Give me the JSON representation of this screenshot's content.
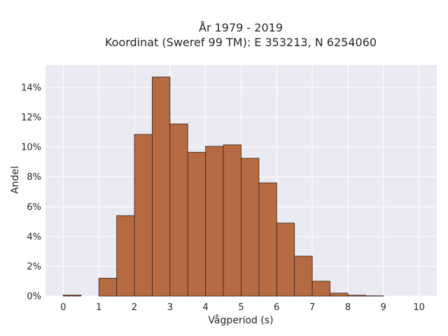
{
  "chart_data": {
    "type": "bar",
    "title_line1": "År 1979 - 2019",
    "title_line2": "Koordinat (Sweref 99 TM): E 353213, N 6254060",
    "xlabel": "Vågperiod (s)",
    "ylabel": "Andel",
    "bin_width": 0.5,
    "bins": [
      {
        "x0": 0.0,
        "value": 0.0007
      },
      {
        "x0": 0.5,
        "value": 0.0
      },
      {
        "x0": 1.0,
        "value": 0.012
      },
      {
        "x0": 1.5,
        "value": 0.054
      },
      {
        "x0": 2.0,
        "value": 0.1085
      },
      {
        "x0": 2.5,
        "value": 0.147
      },
      {
        "x0": 3.0,
        "value": 0.1155
      },
      {
        "x0": 3.5,
        "value": 0.0965
      },
      {
        "x0": 4.0,
        "value": 0.1005
      },
      {
        "x0": 4.5,
        "value": 0.1015
      },
      {
        "x0": 5.0,
        "value": 0.0925
      },
      {
        "x0": 5.5,
        "value": 0.076
      },
      {
        "x0": 6.0,
        "value": 0.049
      },
      {
        "x0": 6.5,
        "value": 0.0268
      },
      {
        "x0": 7.0,
        "value": 0.01
      },
      {
        "x0": 7.5,
        "value": 0.002
      },
      {
        "x0": 8.0,
        "value": 0.0006
      },
      {
        "x0": 8.5,
        "value": 0.0002
      },
      {
        "x0": 9.0,
        "value": 0.0
      },
      {
        "x0": 9.5,
        "value": 0.0
      }
    ],
    "xlim": [
      -0.5,
      10.5
    ],
    "ylim": [
      0,
      0.155
    ],
    "x_ticks": [
      {
        "value": 0,
        "label": "0"
      },
      {
        "value": 1,
        "label": "1"
      },
      {
        "value": 2,
        "label": "2"
      },
      {
        "value": 3,
        "label": "3"
      },
      {
        "value": 4,
        "label": "4"
      },
      {
        "value": 5,
        "label": "5"
      },
      {
        "value": 6,
        "label": "6"
      },
      {
        "value": 7,
        "label": "7"
      },
      {
        "value": 8,
        "label": "8"
      },
      {
        "value": 9,
        "label": "9"
      },
      {
        "value": 10,
        "label": "10"
      }
    ],
    "y_ticks": [
      {
        "value": 0,
        "label": "0%"
      },
      {
        "value": 0.02,
        "label": "2%"
      },
      {
        "value": 0.04,
        "label": "4%"
      },
      {
        "value": 0.06,
        "label": "6%"
      },
      {
        "value": 0.08,
        "label": "8%"
      },
      {
        "value": 0.1,
        "label": "10%"
      },
      {
        "value": 0.12,
        "label": "12%"
      },
      {
        "value": 0.14,
        "label": "14%"
      }
    ],
    "grid": true,
    "colors": {
      "bar_fill": "#b66a42",
      "bar_edge": "#3a2318",
      "plot_bg": "#eaeaf2",
      "grid": "#ffffff"
    }
  }
}
